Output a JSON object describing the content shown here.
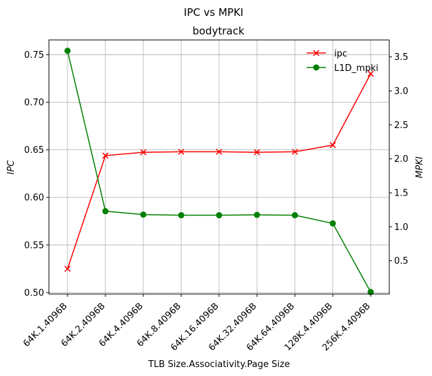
{
  "chart_data": {
    "type": "line",
    "suptitle": "IPC vs MPKI",
    "title": "bodytrack",
    "xlabel": "TLB Size.Associativity.Page Size",
    "ylabel_left": "IPC",
    "ylabel_right": "MPKI",
    "categories": [
      "64K.1.4096B",
      "64K.2.4096B",
      "64K.4.4096B",
      "64K.8.4096B",
      "64K.16.4096B",
      "64K.32.4096B",
      "64K.64.4096B",
      "128K.4.4096B",
      "256K.4.4096B"
    ],
    "ylim_left": [
      0.4985,
      0.7655
    ],
    "yticks_left": [
      "0.50",
      "0.55",
      "0.60",
      "0.65",
      "0.70",
      "0.75"
    ],
    "ylim_right": [
      0.01,
      3.75
    ],
    "yticks_right": [
      "0.5",
      "1.0",
      "1.5",
      "2.0",
      "2.5",
      "3.0",
      "3.5"
    ],
    "grid": true,
    "legend_position": "top-right",
    "series": [
      {
        "name": "ipc",
        "axis": "left",
        "color": "#ff0000",
        "marker": "x",
        "values": [
          0.525,
          0.644,
          0.6475,
          0.648,
          0.648,
          0.6475,
          0.648,
          0.655,
          0.73
        ]
      },
      {
        "name": "L1D_mpki",
        "axis": "right",
        "color": "#008000",
        "marker": "o",
        "values": [
          3.59,
          1.23,
          1.18,
          1.17,
          1.17,
          1.175,
          1.17,
          1.05,
          0.04
        ]
      }
    ]
  }
}
